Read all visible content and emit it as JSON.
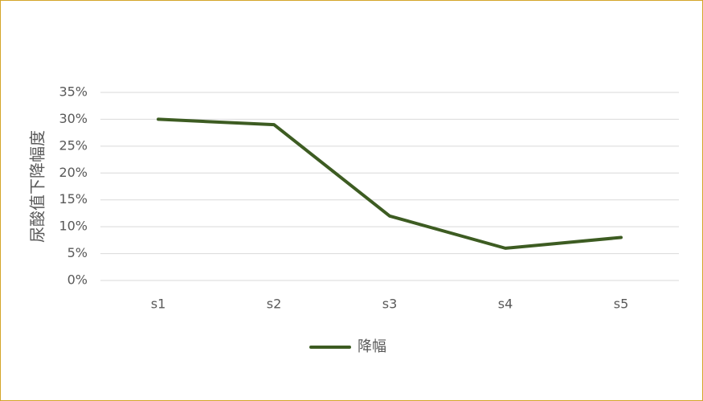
{
  "chart_data": {
    "type": "line",
    "y_axis_label": "尿酸值下降幅度",
    "categories": [
      "s1",
      "s2",
      "s3",
      "s4",
      "s5"
    ],
    "series": [
      {
        "name": "降幅",
        "color": "#3d5c22",
        "values": [
          30,
          29,
          12,
          6,
          8
        ]
      }
    ],
    "ylim": [
      0,
      35
    ],
    "yticks": [
      {
        "value": 0,
        "label": "0%"
      },
      {
        "value": 5,
        "label": "5%"
      },
      {
        "value": 10,
        "label": "10%"
      },
      {
        "value": 15,
        "label": "15%"
      },
      {
        "value": 20,
        "label": "20%"
      },
      {
        "value": 25,
        "label": "25%"
      },
      {
        "value": 30,
        "label": "30%"
      },
      {
        "value": 35,
        "label": "35%"
      }
    ],
    "grid": true,
    "legend": "bottom"
  }
}
